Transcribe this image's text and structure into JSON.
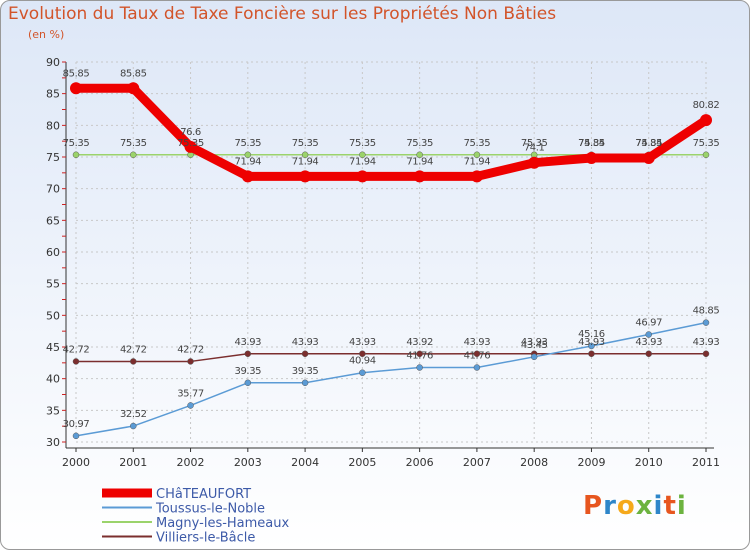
{
  "title": "Evolution du Taux de Taxe Foncière sur les Propriétés Non Bâties",
  "subtitle": "(en %)",
  "logo": {
    "letters": [
      "P",
      "r",
      "o",
      "x",
      "i",
      "t",
      "i"
    ],
    "colors": [
      "#e7561f",
      "#2e86c9",
      "#f5a91b",
      "#6cb33f",
      "#2e86c9",
      "#e7561f",
      "#6cb33f"
    ]
  },
  "chart_data": {
    "type": "line",
    "title": "Evolution du Taux de Taxe Foncière sur les Propriétés Non Bâties",
    "ylabel": "(en %)",
    "xlabel": "",
    "ylim": [
      30,
      90
    ],
    "yticks": [
      30,
      35,
      40,
      45,
      50,
      55,
      60,
      65,
      70,
      75,
      80,
      85,
      90
    ],
    "x": [
      "2000",
      "2001",
      "2002",
      "2003",
      "2004",
      "2005",
      "2006",
      "2007",
      "2008",
      "2009",
      "2010",
      "2011"
    ],
    "grid": true,
    "series": [
      {
        "name": "CHâTEAUFORT",
        "color": "#ee0000",
        "values": [
          85.85,
          85.85,
          76.6,
          71.94,
          71.94,
          71.94,
          71.94,
          71.94,
          74.1,
          74.84,
          74.84,
          80.82
        ],
        "labels": [
          "85.85",
          "85.85",
          "76.6",
          "71.94",
          "71.94",
          "71.94",
          "71.94",
          "71.94",
          "74.1",
          "74.84",
          "74.84",
          "80.82"
        ]
      },
      {
        "name": "Toussus-le-Noble",
        "color": "#5b9bd5",
        "values": [
          30.97,
          32.52,
          35.77,
          39.35,
          39.35,
          40.94,
          41.76,
          41.76,
          43.45,
          45.16,
          46.97,
          48.85
        ],
        "labels": [
          "30.97",
          "32.52",
          "35.77",
          "39.35",
          "39.35",
          "40.94",
          "41.76",
          "41.76",
          "43.45",
          "45.16",
          "46.97",
          "48.85"
        ]
      },
      {
        "name": "Magny-les-Hameaux",
        "color": "#9bd36b",
        "values": [
          75.35,
          75.35,
          75.35,
          75.35,
          75.35,
          75.35,
          75.35,
          75.35,
          75.35,
          75.35,
          75.35,
          75.35
        ],
        "labels": [
          "75.35",
          "75.35",
          "75.35",
          "75.35",
          "75.35",
          "75.35",
          "75.35",
          "75.35",
          "75.35",
          "75.35",
          "75.35",
          "75.35"
        ]
      },
      {
        "name": "Villiers-le-Bâcle",
        "color": "#7b2e2e",
        "values": [
          42.72,
          42.72,
          42.72,
          43.93,
          43.93,
          43.93,
          43.92,
          43.93,
          43.93,
          43.93,
          43.93,
          43.93
        ],
        "labels": [
          "42.72",
          "42.72",
          "42.72",
          "43.93",
          "43.93",
          "43.93",
          "43.92",
          "43.93",
          "43.93",
          "43.93",
          "43.93",
          "43.93"
        ]
      }
    ]
  }
}
